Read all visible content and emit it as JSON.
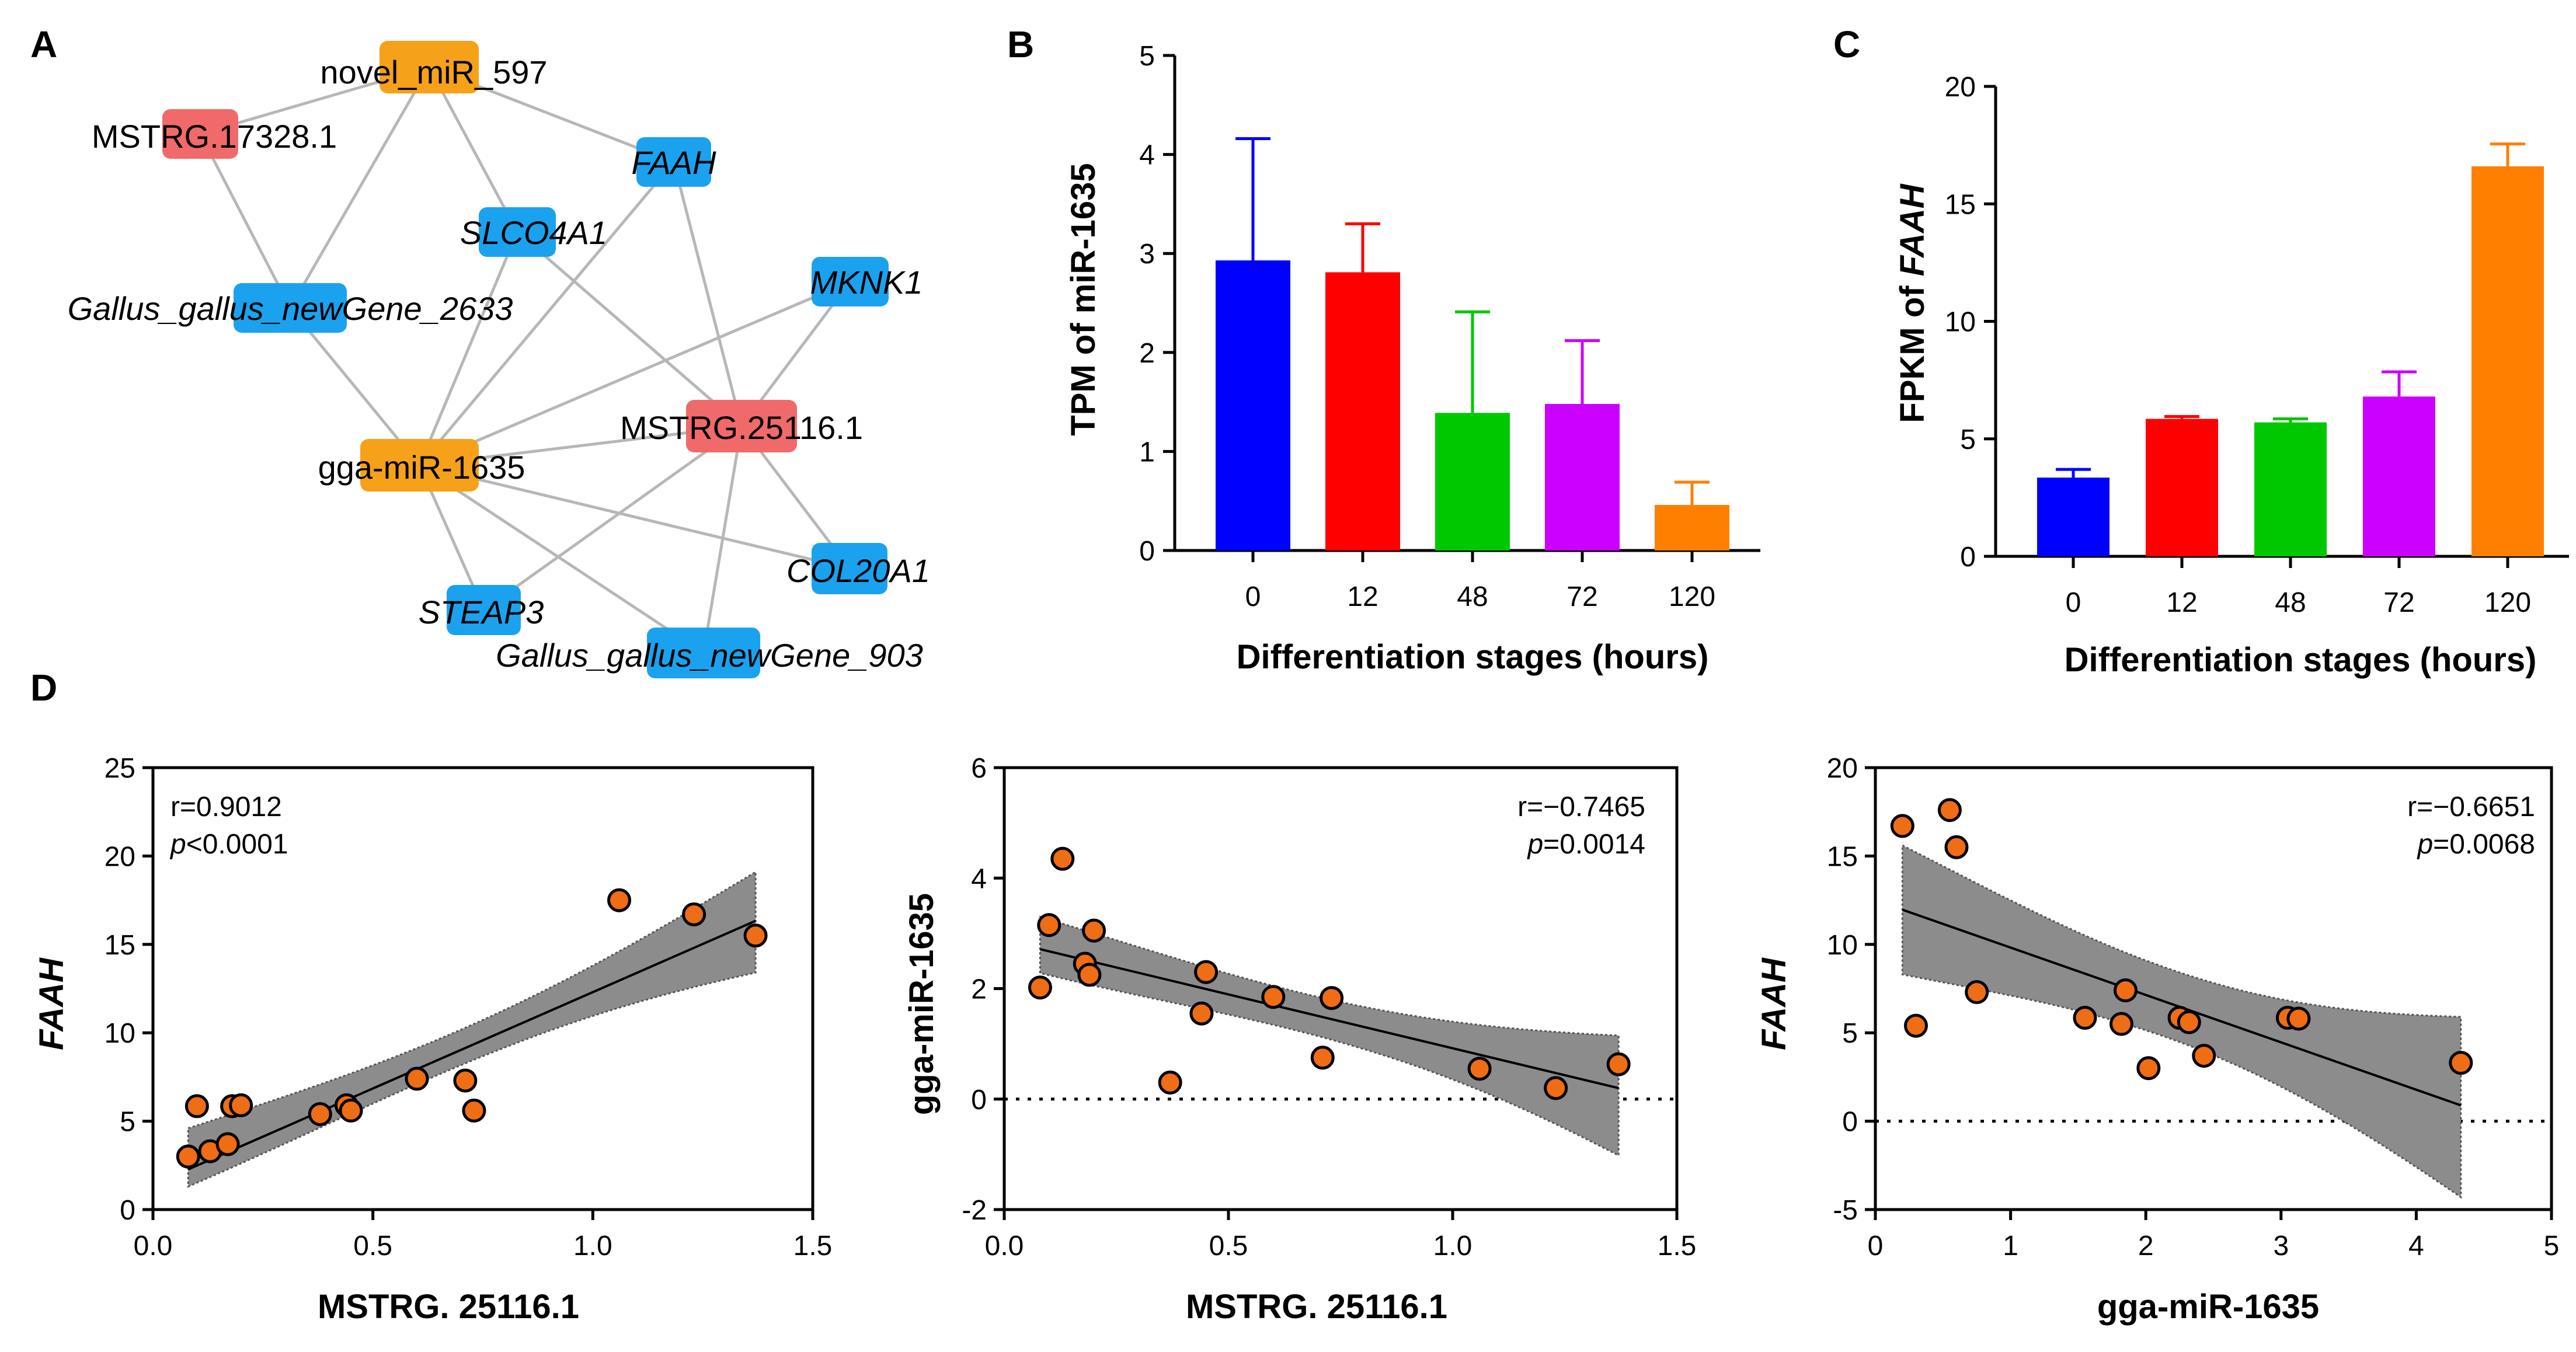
{
  "panels": {
    "a": "A",
    "b": "B",
    "c": "C",
    "d": "D"
  },
  "colors": {
    "mirna": "#f5a11a",
    "lncrna": "#f06a6a",
    "mrna": "#1ba2ee",
    "edge": "#b7b7b7",
    "bar_0": "#0000ff",
    "bar_12": "#ff0000",
    "bar_48": "#00c800",
    "bar_72": "#cc00ff",
    "bar_120": "#ff8000",
    "point": "#ef6d14",
    "band": "#8c8c8c"
  },
  "network": {
    "nodes": [
      {
        "id": "novel_miR_597",
        "label": "novel_miR_597",
        "type": "mirna",
        "italic": false
      },
      {
        "id": "MSTRG.17328.1",
        "label": "MSTRG.17328.1",
        "type": "lncrna",
        "italic": false
      },
      {
        "id": "FAAH",
        "label": "FAAH",
        "type": "mrna",
        "italic": true
      },
      {
        "id": "SLCO4A1",
        "label": "SLCO4A1",
        "type": "mrna",
        "italic": true
      },
      {
        "id": "MKNK1",
        "label": "MKNK1",
        "type": "mrna",
        "italic": true
      },
      {
        "id": "Gallus_gallus_newGene_2633",
        "label": "Gallus_gallus_newGene_2633",
        "type": "mrna",
        "italic": true
      },
      {
        "id": "MSTRG.25116.1",
        "label": "MSTRG.25116.1",
        "type": "lncrna",
        "italic": false
      },
      {
        "id": "gga-miR-1635",
        "label": "gga-miR-1635",
        "type": "mirna",
        "italic": false
      },
      {
        "id": "COL20A1",
        "label": "COL20A1",
        "type": "mrna",
        "italic": true
      },
      {
        "id": "STEAP3",
        "label": "STEAP3",
        "type": "mrna",
        "italic": true
      },
      {
        "id": "Gallus_gallus_newGene_903",
        "label": "Gallus_gallus_newGene_903",
        "type": "mrna",
        "italic": true
      }
    ],
    "edges": [
      [
        "novel_miR_597",
        "MSTRG.17328.1"
      ],
      [
        "novel_miR_597",
        "FAAH"
      ],
      [
        "novel_miR_597",
        "SLCO4A1"
      ],
      [
        "novel_miR_597",
        "Gallus_gallus_newGene_2633"
      ],
      [
        "MSTRG.17328.1",
        "Gallus_gallus_newGene_2633"
      ],
      [
        "Gallus_gallus_newGene_2633",
        "gga-miR-1635"
      ],
      [
        "SLCO4A1",
        "gga-miR-1635"
      ],
      [
        "SLCO4A1",
        "MSTRG.25116.1"
      ],
      [
        "FAAH",
        "gga-miR-1635"
      ],
      [
        "FAAH",
        "MSTRG.25116.1"
      ],
      [
        "MKNK1",
        "gga-miR-1635"
      ],
      [
        "MKNK1",
        "MSTRG.25116.1"
      ],
      [
        "gga-miR-1635",
        "MSTRG.25116.1"
      ],
      [
        "gga-miR-1635",
        "COL20A1"
      ],
      [
        "gga-miR-1635",
        "STEAP3"
      ],
      [
        "gga-miR-1635",
        "Gallus_gallus_newGene_903"
      ],
      [
        "MSTRG.25116.1",
        "COL20A1"
      ],
      [
        "MSTRG.25116.1",
        "STEAP3"
      ],
      [
        "MSTRG.25116.1",
        "Gallus_gallus_newGene_903"
      ]
    ]
  },
  "chart_data": [
    {
      "id": "B",
      "type": "bar",
      "categories": [
        "0",
        "12",
        "48",
        "72",
        "120"
      ],
      "values": [
        2.93,
        2.81,
        1.39,
        1.48,
        0.46
      ],
      "errors": [
        1.23,
        0.49,
        1.02,
        0.64,
        0.23
      ],
      "ylabel": "TPM of miR-1635",
      "xlabel": "Differentiation stages (hours)",
      "ylim": [
        0,
        5
      ],
      "yticks": [
        "0",
        "1",
        "2",
        "3",
        "4",
        "5"
      ]
    },
    {
      "id": "C",
      "type": "bar",
      "categories": [
        "0",
        "12",
        "48",
        "72",
        "120"
      ],
      "values": [
        3.35,
        5.85,
        5.7,
        6.8,
        16.6
      ],
      "errors": [
        0.35,
        0.1,
        0.15,
        1.05,
        0.95
      ],
      "ylabel_prefix": "FPKM of ",
      "ylabel_gene": "FAAH",
      "xlabel": "Differentiation stages (hours)",
      "ylim": [
        0,
        20
      ],
      "yticks": [
        "0",
        "5",
        "10",
        "15",
        "20"
      ]
    },
    {
      "id": "D1",
      "type": "scatter",
      "x": [
        0.08,
        0.1,
        0.13,
        0.17,
        0.18,
        0.2,
        0.38,
        0.44,
        0.45,
        0.6,
        0.71,
        0.73,
        1.06,
        1.23,
        1.37
      ],
      "y": [
        3.0,
        5.85,
        3.3,
        3.7,
        5.85,
        5.9,
        5.4,
        5.9,
        5.6,
        7.4,
        7.3,
        5.6,
        17.5,
        16.7,
        15.5
      ],
      "fit": {
        "slope": 10.9,
        "intercept": 1.4,
        "band_lo": [
          1.3,
          13.4
        ],
        "band_hi": [
          4.6,
          19.1
        ]
      },
      "xlabel": "MSTRG. 25116.1",
      "ylabel": "FAAH",
      "xlim": [
        0,
        1.5
      ],
      "ylim": [
        0,
        25
      ],
      "xticks": [
        "0.0",
        "0.5",
        "1.0",
        "1.5"
      ],
      "yticks": [
        "0",
        "5",
        "10",
        "15",
        "20",
        "25"
      ],
      "stat_r": "r=0.9012",
      "stat_p_prefix": "p",
      "stat_p_value": "<0.0001"
    },
    {
      "id": "D2",
      "type": "scatter",
      "x": [
        0.08,
        0.1,
        0.13,
        0.18,
        0.19,
        0.2,
        0.37,
        0.44,
        0.45,
        0.6,
        0.71,
        0.73,
        1.06,
        1.23,
        1.37
      ],
      "y": [
        2.02,
        3.15,
        4.35,
        2.45,
        2.25,
        3.05,
        0.3,
        1.55,
        2.3,
        1.85,
        0.75,
        1.83,
        0.55,
        0.2,
        0.63
      ],
      "fit": {
        "slope": -1.95,
        "intercept": 2.87,
        "band_lo": [
          2.28,
          -1.02
        ],
        "band_hi": [
          3.3,
          1.15
        ]
      },
      "baseline": 0,
      "xlabel": "MSTRG. 25116.1",
      "ylabel": "gga-miR-1635",
      "xlim": [
        0,
        1.5
      ],
      "ylim": [
        -2,
        6
      ],
      "xticks": [
        "0.0",
        "0.5",
        "1.0",
        "1.5"
      ],
      "yticks": [
        "-2",
        "0",
        "2",
        "4",
        "6"
      ],
      "stat_r": "r=−0.7465",
      "stat_p_prefix": "p",
      "stat_p_value": "=0.0014"
    },
    {
      "id": "D3",
      "type": "scatter",
      "x": [
        0.2,
        0.3,
        0.55,
        0.6,
        0.75,
        1.55,
        1.82,
        1.85,
        2.02,
        2.25,
        2.32,
        2.43,
        3.05,
        3.13,
        4.33
      ],
      "y": [
        16.7,
        5.4,
        17.6,
        15.5,
        7.3,
        5.85,
        5.5,
        7.4,
        3.0,
        5.85,
        5.6,
        3.7,
        5.85,
        5.8,
        3.3
      ],
      "fit": {
        "slope": -2.68,
        "intercept": 12.5,
        "band_lo": [
          8.3,
          -4.3
        ],
        "band_hi": [
          15.6,
          5.9
        ]
      },
      "baseline": 0,
      "xlabel": "gga-miR-1635",
      "ylabel": "FAAH",
      "xlim": [
        0,
        5
      ],
      "ylim": [
        -5,
        20
      ],
      "xticks": [
        "0",
        "1",
        "2",
        "3",
        "4",
        "5"
      ],
      "yticks": [
        "-5",
        "0",
        "5",
        "10",
        "15",
        "20"
      ],
      "stat_r": "r=−0.6651",
      "stat_p_prefix": "p",
      "stat_p_value": "=0.0068"
    }
  ]
}
